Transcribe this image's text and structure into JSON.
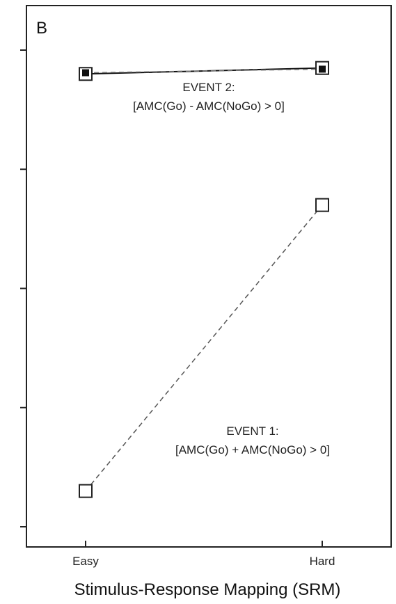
{
  "chart_data": {
    "type": "line",
    "panel_label": "B",
    "categories": [
      "Easy",
      "Hard"
    ],
    "xlabel": "Stimulus-Response Mapping (SRM)",
    "ylabel": "",
    "ylim": [
      0,
      4.2
    ],
    "yticks": [
      0.2,
      1.2,
      2.2,
      3.2,
      4.2
    ],
    "grid": false,
    "series": [
      {
        "values": [
          0.5,
          2.9
        ],
        "style": "dashed",
        "marker": "open-square",
        "color": "#555555"
      },
      {
        "values": [
          4.0,
          4.05
        ],
        "style": "solid",
        "marker": "open-square",
        "color": "#111111"
      },
      {
        "values": [
          4.01,
          4.04
        ],
        "style": "dashed",
        "marker": "filled-square",
        "color": "#777777"
      }
    ],
    "annotations": [
      {
        "lines": [
          "EVENT 2:",
          "[AMC(Go) - AMC(NoGo) > 0]"
        ],
        "x": 0.5,
        "y": 3.62
      },
      {
        "lines": [
          "EVENT 1:",
          "[AMC(Go) + AMC(NoGo) > 0]"
        ],
        "x": 0.7,
        "y": 0.78
      }
    ]
  }
}
